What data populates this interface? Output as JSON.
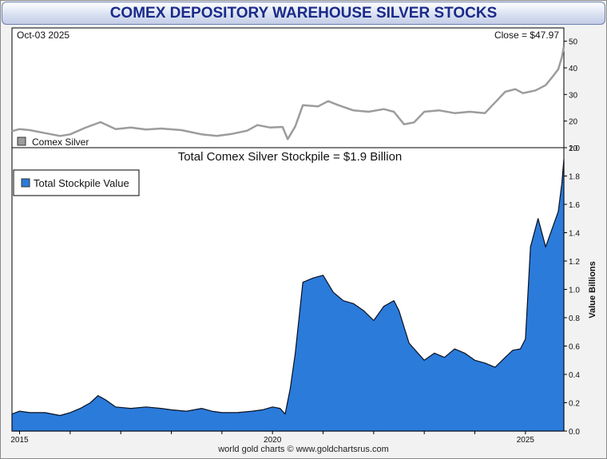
{
  "title": "COMEX DEPOSITORY WAREHOUSE SILVER STOCKS",
  "source": "world gold charts © www.goldchartsrus.com",
  "colors": {
    "stockpile_fill": "#2b7bdb",
    "silver_line": "#9c9c9c",
    "title_text": "#1a2a8a"
  },
  "chart_data": [
    {
      "type": "line",
      "date_label": "Oct-03  2025",
      "close_label": "Close = $47.97",
      "legend": [
        "Comex Silver"
      ],
      "legend_placement": "bottom-left",
      "ylim": [
        10,
        55
      ],
      "yticks": [
        "10",
        "20",
        "30",
        "40",
        "50"
      ],
      "x_range": [
        2014.85,
        2025.76
      ],
      "grid": false,
      "series": [
        {
          "name": "Comex Silver",
          "x": [
            2014.85,
            2015.0,
            2015.2,
            2015.5,
            2015.8,
            2016.0,
            2016.3,
            2016.6,
            2016.9,
            2017.2,
            2017.5,
            2017.8,
            2018.2,
            2018.6,
            2018.9,
            2019.2,
            2019.5,
            2019.7,
            2019.95,
            2020.2,
            2020.3,
            2020.45,
            2020.6,
            2020.9,
            2021.1,
            2021.3,
            2021.6,
            2021.9,
            2022.2,
            2022.4,
            2022.6,
            2022.8,
            2023.0,
            2023.3,
            2023.6,
            2023.9,
            2024.2,
            2024.4,
            2024.6,
            2024.8,
            2024.95,
            2025.2,
            2025.4,
            2025.55,
            2025.65,
            2025.72,
            2025.76
          ],
          "values": [
            16.2,
            17.0,
            16.6,
            15.5,
            14.4,
            15.0,
            17.5,
            19.6,
            17.0,
            17.6,
            16.8,
            17.2,
            16.6,
            15.0,
            14.4,
            15.2,
            16.4,
            18.5,
            17.6,
            17.8,
            13.2,
            18.0,
            26.0,
            25.5,
            27.5,
            26.0,
            24.0,
            23.5,
            24.5,
            23.5,
            18.8,
            19.5,
            23.5,
            24.0,
            23.0,
            23.5,
            23.0,
            27.0,
            31.0,
            32.0,
            30.5,
            31.5,
            33.5,
            37.0,
            39.5,
            44.0,
            47.97
          ]
        }
      ]
    },
    {
      "type": "area",
      "title": "Total Comex Silver Stockpile = $1.9 Billion",
      "ylabel": "Value Billions",
      "legend": [
        "Total Stockpile Value"
      ],
      "legend_placement": "top-left",
      "ylim": [
        0,
        2.0
      ],
      "yticks": [
        "0.0",
        "0.2",
        "0.4",
        "0.6",
        "0.8",
        "1.0",
        "1.2",
        "1.4",
        "1.6",
        "1.8",
        "2.0"
      ],
      "xticks": [
        "2015",
        "2020",
        "2025"
      ],
      "x_range": [
        2014.85,
        2025.76
      ],
      "grid": false,
      "series": [
        {
          "name": "Total Stockpile Value",
          "x": [
            2014.85,
            2015.0,
            2015.2,
            2015.5,
            2015.8,
            2016.0,
            2016.2,
            2016.4,
            2016.55,
            2016.7,
            2016.9,
            2017.2,
            2017.5,
            2017.8,
            2018.0,
            2018.3,
            2018.6,
            2018.8,
            2019.0,
            2019.3,
            2019.6,
            2019.8,
            2020.0,
            2020.15,
            2020.25,
            2020.35,
            2020.45,
            2020.6,
            2020.8,
            2021.0,
            2021.2,
            2021.4,
            2021.6,
            2021.8,
            2022.0,
            2022.2,
            2022.4,
            2022.5,
            2022.7,
            2023.0,
            2023.2,
            2023.4,
            2023.6,
            2023.8,
            2024.0,
            2024.2,
            2024.4,
            2024.6,
            2024.75,
            2024.9,
            2025.0,
            2025.1,
            2025.25,
            2025.4,
            2025.55,
            2025.65,
            2025.72,
            2025.76
          ],
          "values": [
            0.12,
            0.14,
            0.13,
            0.13,
            0.11,
            0.13,
            0.16,
            0.2,
            0.25,
            0.22,
            0.17,
            0.16,
            0.17,
            0.16,
            0.15,
            0.14,
            0.16,
            0.14,
            0.13,
            0.13,
            0.14,
            0.15,
            0.17,
            0.16,
            0.12,
            0.3,
            0.55,
            1.05,
            1.08,
            1.1,
            0.98,
            0.92,
            0.9,
            0.85,
            0.78,
            0.88,
            0.92,
            0.85,
            0.62,
            0.5,
            0.55,
            0.52,
            0.58,
            0.55,
            0.5,
            0.48,
            0.45,
            0.52,
            0.57,
            0.58,
            0.65,
            1.3,
            1.5,
            1.3,
            1.45,
            1.55,
            1.75,
            1.92
          ]
        }
      ]
    }
  ]
}
